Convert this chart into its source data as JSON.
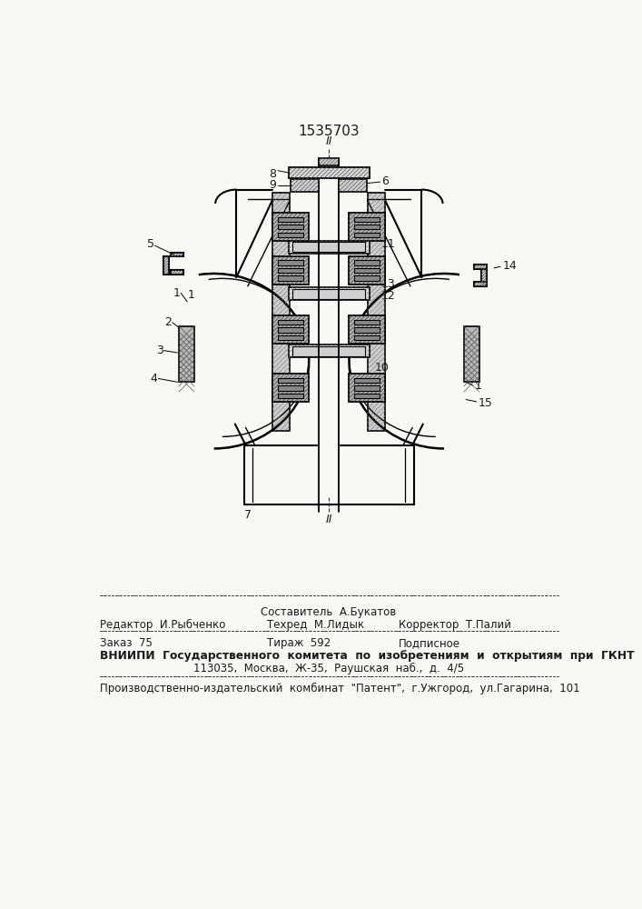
{
  "patent_number": "1535703",
  "bg_color": "#f8f8f5",
  "footer_texts": {
    "line0": "Составитель  А.Букатов",
    "line1_left": "Редактор  И.Рыбченко",
    "line1_mid": "Техред  М.Лидык",
    "line1_right": "Корректор  Т.Палий",
    "line2_left": "Заказ  75",
    "line2_mid": "Тираж  592",
    "line2_right": "Подписное",
    "line3": "ВНИИПИ  Государственного  комитета  по  изобретениям  и  открытиям  при  ГКНТ  СССР",
    "line4": "113035,  Москва,  Ж-35,  Раушская  наб.,  д.  4/5",
    "line5": "Производственно-издательский  комбинат  \"Патент\",  г.Ужгород,  ул.Гагарина,  101"
  },
  "text_color": "#1a1a1a"
}
